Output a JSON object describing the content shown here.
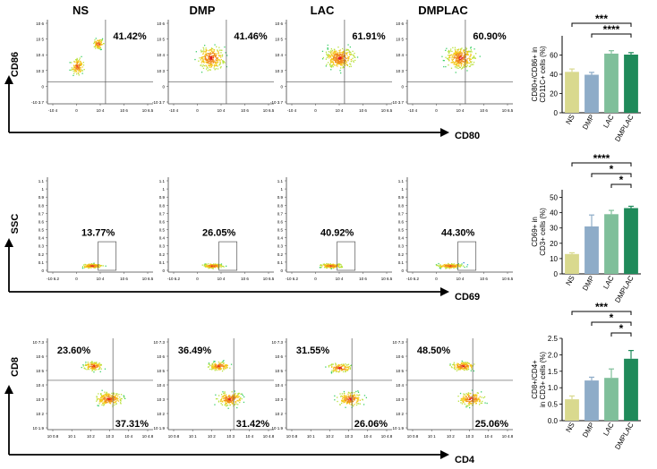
{
  "groups": [
    "NS",
    "DMP",
    "LAC",
    "DMPLAC"
  ],
  "colors": {
    "NS": "#d9d98e",
    "DMP": "#8eacc8",
    "LAC": "#7fbf9a",
    "DMPLAC": "#1f8a5a"
  },
  "rows": [
    {
      "y_marker": "CD86",
      "x_marker": "CD80",
      "ytick_labels": [
        "10 6",
        "10 5",
        "10 4",
        "10 3",
        "0",
        "-10 3.7"
      ],
      "xtick_labels": [
        "-10 4",
        "0",
        "10 4",
        "10 6",
        "10 6.5"
      ],
      "percentages": [
        "41.42%",
        "41.46%",
        "61.91%",
        "60.90%"
      ]
    },
    {
      "y_marker": "SSC",
      "x_marker": "CD69",
      "ytick_labels": [
        "1.1",
        "1",
        "0.9",
        "0.8",
        "0.7",
        "0.6",
        "0.5",
        "0.4",
        "0.3",
        "0.2",
        "0.1",
        "0"
      ],
      "xtick_labels": [
        "-10 6.2",
        "0",
        "10 4",
        "10 6",
        "10 6.5"
      ],
      "percentages": [
        "13.77%",
        "26.05%",
        "40.92%",
        "44.30%"
      ]
    },
    {
      "y_marker": "CD8",
      "x_marker": "CD4",
      "ytick_labels": [
        "10 7.3",
        "10 6",
        "10 5",
        "10 4",
        "10 3",
        "10 2",
        "10 1.9"
      ],
      "xtick_labels": [
        "10 0.8",
        "10 1",
        "10 2",
        "10 3",
        "10 4",
        "10 4.8"
      ],
      "percentages_top": [
        "23.60%",
        "36.49%",
        "31.55%",
        "48.50%"
      ],
      "percentages_bottom": [
        "37.31%",
        "31.42%",
        "26.06%",
        "25.06%"
      ]
    }
  ],
  "chart_data": [
    {
      "type": "bar",
      "categories": [
        "NS",
        "DMP",
        "LAC",
        "DMPLAC"
      ],
      "values": [
        42.5,
        39.5,
        61.5,
        60.5
      ],
      "errors": [
        3,
        2.5,
        3,
        2
      ],
      "ylabel": "CD80+/CD86+ in CD11C+ cells (%)",
      "ylabel_lines": [
        "CD80+/CD86+ in",
        "CD11C+ cells (%)"
      ],
      "ylim": [
        0,
        80
      ],
      "yticks": [
        0,
        20,
        40,
        60
      ],
      "sig": [
        {
          "from": 0,
          "to": 3,
          "label": "***"
        },
        {
          "from": 1,
          "to": 3,
          "label": "****"
        }
      ]
    },
    {
      "type": "bar",
      "categories": [
        "NS",
        "DMP",
        "LAC",
        "DMPLAC"
      ],
      "values": [
        13,
        31,
        39,
        43
      ],
      "errors": [
        0.8,
        7.5,
        2.5,
        1.2
      ],
      "ylabel": "CD69+ in CD3+ cells (%)",
      "ylabel_lines": [
        "CD69+ in",
        "CD3+ cells (%)"
      ],
      "ylim": [
        0,
        55
      ],
      "yticks": [
        0,
        10,
        20,
        30,
        40,
        50
      ],
      "sig": [
        {
          "from": 0,
          "to": 3,
          "label": "****"
        },
        {
          "from": 1,
          "to": 3,
          "label": "*"
        },
        {
          "from": 2,
          "to": 3,
          "label": "*"
        }
      ]
    },
    {
      "type": "bar",
      "categories": [
        "NS",
        "DMP",
        "LAC",
        "DMPLAC"
      ],
      "values": [
        0.65,
        1.22,
        1.3,
        1.88
      ],
      "errors": [
        0.1,
        0.1,
        0.27,
        0.25
      ],
      "ylabel": "CD8+/CD4+ in CD3+ cells (%)",
      "ylabel_lines": [
        "CD8+/CD4+",
        "in CD3+ cells (%)"
      ],
      "ylim": [
        0,
        2.5
      ],
      "yticks": [
        0,
        0.5,
        1.0,
        1.5,
        2.0,
        2.5
      ],
      "ytick_labels": [
        "0.0",
        "0.5",
        "1.0",
        "1.5",
        "2.0",
        "2.5"
      ],
      "sig": [
        {
          "from": 0,
          "to": 3,
          "label": "***"
        },
        {
          "from": 1,
          "to": 3,
          "label": "*"
        },
        {
          "from": 2,
          "to": 3,
          "label": "*"
        }
      ]
    }
  ]
}
